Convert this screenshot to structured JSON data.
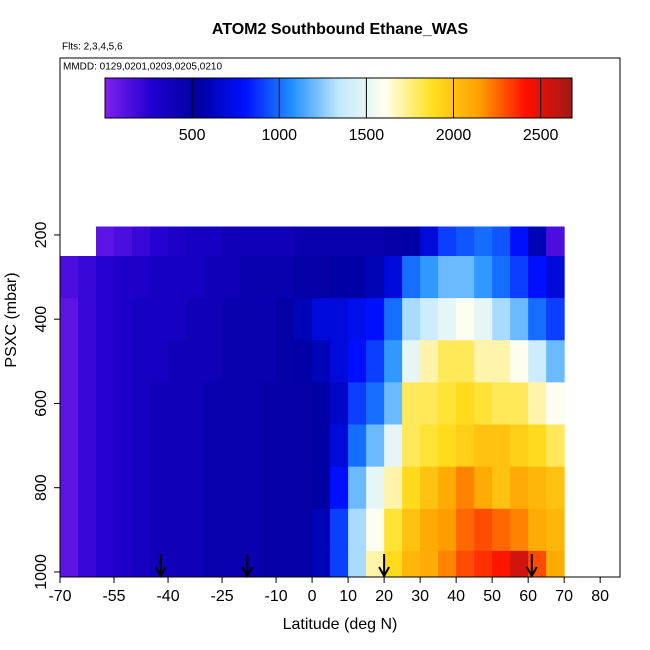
{
  "chart_data": {
    "type": "heatmap",
    "title": "ATOM2 Southbound Ethane_WAS",
    "annotations": [
      "Flts: 2,3,4,5,6",
      "MMDD: 0129,0201,0203,0205,0210"
    ],
    "xlabel": "Latitude (deg N)",
    "ylabel": "PSXC (mbar)",
    "xlim": [
      -70,
      85.5
    ],
    "xticks": [
      -70,
      -55,
      -40,
      -25,
      -10,
      0,
      10,
      20,
      30,
      40,
      50,
      60,
      70,
      80
    ],
    "ylim": [
      1012,
      -220
    ],
    "yticks": [
      200,
      400,
      600,
      800,
      1000
    ],
    "x_edges": [
      -70,
      -65,
      -60,
      -55,
      -50,
      -45,
      -40,
      -35,
      -30,
      -25,
      -20,
      -15,
      -10,
      -5,
      0,
      5,
      10,
      15,
      20,
      25,
      30,
      35,
      40,
      45,
      50,
      55,
      60,
      65,
      70
    ],
    "y_edges": [
      180,
      250,
      350,
      450,
      550,
      650,
      750,
      850,
      950,
      1010
    ],
    "z": [
      [
        null,
        null,
        100,
        150,
        200,
        250,
        300,
        350,
        350,
        400,
        400,
        400,
        400,
        450,
        450,
        450,
        450,
        450,
        500,
        550,
        700,
        900,
        950,
        1000,
        950,
        800,
        600,
        150
      ],
      [
        150,
        200,
        250,
        300,
        300,
        350,
        350,
        350,
        400,
        400,
        450,
        450,
        450,
        500,
        500,
        550,
        550,
        600,
        700,
        1000,
        1100,
        1200,
        1200,
        1100,
        1000,
        900,
        800,
        700
      ],
      [
        100,
        200,
        250,
        300,
        350,
        350,
        350,
        400,
        400,
        450,
        450,
        450,
        500,
        600,
        700,
        700,
        750,
        800,
        1000,
        1300,
        1400,
        1500,
        1600,
        1500,
        1300,
        1200,
        1000,
        900
      ],
      [
        100,
        200,
        250,
        300,
        350,
        350,
        400,
        400,
        400,
        450,
        450,
        450,
        500,
        550,
        600,
        700,
        800,
        900,
        1100,
        1500,
        1700,
        1800,
        1800,
        1700,
        1700,
        1600,
        1400,
        1200
      ],
      [
        100,
        200,
        250,
        300,
        350,
        400,
        400,
        400,
        450,
        450,
        450,
        500,
        500,
        500,
        550,
        650,
        900,
        1000,
        1200,
        1800,
        1800,
        1850,
        1900,
        1850,
        1800,
        1800,
        1700,
        1600
      ],
      [
        100,
        200,
        250,
        300,
        350,
        400,
        400,
        400,
        450,
        450,
        450,
        500,
        500,
        500,
        550,
        700,
        1000,
        1200,
        1500,
        1800,
        1850,
        1900,
        1950,
        2000,
        2000,
        1950,
        1900,
        1800
      ],
      [
        100,
        200,
        250,
        300,
        350,
        400,
        400,
        400,
        450,
        450,
        450,
        500,
        500,
        500,
        550,
        800,
        1200,
        1500,
        1700,
        1900,
        2000,
        2100,
        2200,
        2100,
        2000,
        2100,
        2050,
        2000
      ],
      [
        100,
        200,
        250,
        300,
        350,
        400,
        400,
        400,
        450,
        450,
        450,
        500,
        500,
        500,
        600,
        900,
        1300,
        1600,
        1850,
        2000,
        2100,
        2150,
        2250,
        2300,
        2250,
        2200,
        2100,
        2050
      ],
      [
        100,
        200,
        250,
        300,
        350,
        400,
        400,
        400,
        450,
        450,
        450,
        500,
        500,
        500,
        600,
        900,
        1300,
        1700,
        1900,
        2050,
        2100,
        2200,
        2300,
        2350,
        2400,
        2550,
        2300,
        2100
      ]
    ],
    "zlim": [
      0,
      2680
    ],
    "zticks": [
      500,
      1000,
      1500,
      2000,
      2500
    ],
    "colors": [
      "#8020f0",
      "#2000d0",
      "#0000a0",
      "#0010ff",
      "#1e90ff",
      "#c0e8ff",
      "#fffff0",
      "#ffe020",
      "#ffa000",
      "#ff1000",
      "#a01818"
    ],
    "arrows": [
      -42,
      -18,
      20,
      61
    ]
  }
}
